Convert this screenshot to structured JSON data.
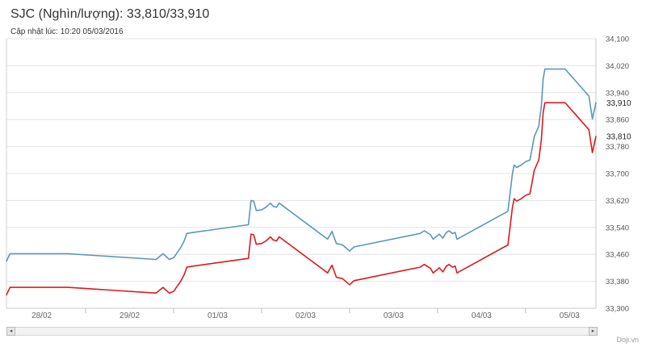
{
  "header": {
    "title": "SJC (Nghìn/lượng): 33,810/33,910",
    "subtitle": "Cập nhật lúc: 10:20 05/03/2016"
  },
  "brand": "Doji.vn",
  "scrollbar": {
    "left_arrow": "◂",
    "right_arrow": "▸"
  },
  "chart_data": {
    "type": "line",
    "title": "SJC (Nghìn/lượng): 33,810/33,910",
    "subtitle": "Cập nhật lúc: 10:20 05/03/2016",
    "xlabel": "",
    "ylabel": "",
    "ylim": [
      33300,
      34100
    ],
    "xlim": [
      -0.4,
      6.3
    ],
    "y_ticks": [
      33300,
      33380,
      33460,
      33540,
      33620,
      33700,
      33780,
      33860,
      33940,
      34020,
      34100
    ],
    "y_tick_labels": [
      "33,300",
      "33,380",
      "33,460",
      "33,540",
      "33,620",
      "33,700",
      "33,780",
      "33,860",
      "33,940",
      "34,020",
      "34,100"
    ],
    "x_ticks": [
      0,
      1,
      2,
      3,
      4,
      5,
      6
    ],
    "x_tick_labels": [
      "28/02",
      "29/02",
      "01/03",
      "02/03",
      "03/03",
      "04/03",
      "05/03"
    ],
    "grid": true,
    "legend": "none",
    "x_unit": "days",
    "series": [
      {
        "color": "#5b97b6",
        "last_label": "33,910",
        "points": [
          [
            -0.4,
            33440
          ],
          [
            -0.36,
            33462
          ],
          [
            0.3,
            33462
          ],
          [
            1.3,
            33445
          ],
          [
            1.38,
            33462
          ],
          [
            1.45,
            33445
          ],
          [
            1.5,
            33450
          ],
          [
            1.58,
            33480
          ],
          [
            1.62,
            33500
          ],
          [
            1.65,
            33522
          ],
          [
            1.72,
            33525
          ],
          [
            2.35,
            33548
          ],
          [
            2.38,
            33620
          ],
          [
            2.41,
            33618
          ],
          [
            2.44,
            33590
          ],
          [
            2.5,
            33592
          ],
          [
            2.55,
            33600
          ],
          [
            2.6,
            33612
          ],
          [
            2.63,
            33603
          ],
          [
            2.67,
            33600
          ],
          [
            2.7,
            33612
          ],
          [
            3.25,
            33505
          ],
          [
            3.3,
            33528
          ],
          [
            3.35,
            33492
          ],
          [
            3.42,
            33488
          ],
          [
            3.5,
            33470
          ],
          [
            3.55,
            33482
          ],
          [
            4.3,
            33522
          ],
          [
            4.35,
            33530
          ],
          [
            4.42,
            33518
          ],
          [
            4.45,
            33505
          ],
          [
            4.52,
            33520
          ],
          [
            4.56,
            33508
          ],
          [
            4.6,
            33525
          ],
          [
            4.63,
            33530
          ],
          [
            4.67,
            33522
          ],
          [
            4.7,
            33525
          ],
          [
            4.72,
            33505
          ],
          [
            5.3,
            33588
          ],
          [
            5.35,
            33698
          ],
          [
            5.37,
            33725
          ],
          [
            5.4,
            33718
          ],
          [
            5.45,
            33725
          ],
          [
            5.5,
            33735
          ],
          [
            5.55,
            33740
          ],
          [
            5.6,
            33810
          ],
          [
            5.65,
            33840
          ],
          [
            5.68,
            33900
          ],
          [
            5.7,
            33980
          ],
          [
            5.72,
            34010
          ],
          [
            5.95,
            34010
          ],
          [
            6.22,
            33930
          ],
          [
            6.26,
            33862
          ],
          [
            6.3,
            33910
          ]
        ]
      },
      {
        "color": "#dd1a1a",
        "last_label": "33,810",
        "points": [
          [
            -0.4,
            33340
          ],
          [
            -0.36,
            33362
          ],
          [
            0.3,
            33362
          ],
          [
            1.3,
            33345
          ],
          [
            1.38,
            33362
          ],
          [
            1.45,
            33345
          ],
          [
            1.5,
            33350
          ],
          [
            1.58,
            33380
          ],
          [
            1.62,
            33400
          ],
          [
            1.65,
            33422
          ],
          [
            1.72,
            33425
          ],
          [
            2.35,
            33448
          ],
          [
            2.38,
            33520
          ],
          [
            2.41,
            33518
          ],
          [
            2.44,
            33490
          ],
          [
            2.5,
            33492
          ],
          [
            2.55,
            33500
          ],
          [
            2.6,
            33512
          ],
          [
            2.63,
            33503
          ],
          [
            2.67,
            33500
          ],
          [
            2.7,
            33512
          ],
          [
            3.25,
            33405
          ],
          [
            3.3,
            33428
          ],
          [
            3.35,
            33392
          ],
          [
            3.42,
            33388
          ],
          [
            3.5,
            33370
          ],
          [
            3.55,
            33382
          ],
          [
            4.3,
            33422
          ],
          [
            4.35,
            33430
          ],
          [
            4.42,
            33418
          ],
          [
            4.45,
            33405
          ],
          [
            4.52,
            33420
          ],
          [
            4.56,
            33408
          ],
          [
            4.6,
            33425
          ],
          [
            4.63,
            33430
          ],
          [
            4.67,
            33422
          ],
          [
            4.7,
            33425
          ],
          [
            4.72,
            33405
          ],
          [
            5.3,
            33488
          ],
          [
            5.35,
            33598
          ],
          [
            5.37,
            33625
          ],
          [
            5.4,
            33618
          ],
          [
            5.45,
            33625
          ],
          [
            5.5,
            33635
          ],
          [
            5.55,
            33640
          ],
          [
            5.6,
            33710
          ],
          [
            5.65,
            33740
          ],
          [
            5.68,
            33800
          ],
          [
            5.7,
            33880
          ],
          [
            5.72,
            33910
          ],
          [
            5.95,
            33910
          ],
          [
            6.22,
            33830
          ],
          [
            6.26,
            33762
          ],
          [
            6.3,
            33810
          ]
        ]
      }
    ]
  }
}
